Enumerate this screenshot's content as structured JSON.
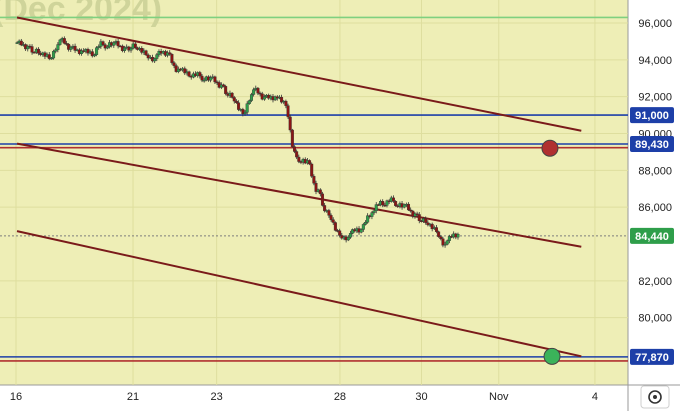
{
  "watermark": "(Dec 2024)",
  "colors": {
    "plot_bg": "#eeeeb6",
    "axis_bg": "#ffffff",
    "grid": "#dede9e",
    "trend": "#7a1a1a",
    "level_blue": "#1d3fa8",
    "level_red": "#b03030",
    "level_green": "#3bb35a",
    "candle_up": "#2e9e4a",
    "candle_down": "#8a1515",
    "last_price_badge": "#2e9e4a",
    "level_badge": "#1d3fa8"
  },
  "chart_data": {
    "type": "candlestick",
    "y_axis": {
      "ticks": [
        "96,000",
        "94,000",
        "92,000",
        "90,000",
        "88,000",
        "86,000",
        "82,000",
        "80,000"
      ],
      "range": [
        77000,
        97000
      ]
    },
    "x_axis": {
      "ticks": [
        "16",
        "21",
        "23",
        "28",
        "30",
        "Nov",
        "4"
      ]
    },
    "price_labels": [
      {
        "label": "91,000",
        "value": 91000,
        "kind": "level"
      },
      {
        "label": "89,430",
        "value": 89430,
        "kind": "level"
      },
      {
        "label": "84,440",
        "value": 84440,
        "kind": "last"
      },
      {
        "label": "77,870",
        "value": 77870,
        "kind": "level"
      }
    ],
    "horizontal_lines": [
      {
        "value": 96300,
        "color": "#7fd07f"
      },
      {
        "value": 91000,
        "color": "#1d3fa8"
      },
      {
        "value": 89430,
        "color": "#1d3fa8"
      },
      {
        "value": 89230,
        "color": "#b03030"
      },
      {
        "value": 84440,
        "color": "#7d7d7d",
        "dotted": true
      },
      {
        "value": 77870,
        "color": "#1d3fa8"
      },
      {
        "value": 77650,
        "color": "#b03030"
      }
    ],
    "trend_lines": [
      {
        "from": [
          0,
          96300
        ],
        "to": [
          27.0,
          90150
        ]
      },
      {
        "from": [
          0,
          89450
        ],
        "to": [
          27.0,
          83850
        ]
      },
      {
        "from": [
          0,
          84700
        ],
        "to": [
          27.0,
          77900
        ]
      }
    ],
    "markers": [
      {
        "x": 25.5,
        "value": 89200,
        "color": "#b03030",
        "label": "target"
      },
      {
        "x": 25.6,
        "value": 77900,
        "color": "#3bb35a",
        "label": "target"
      }
    ],
    "close_series": [
      94800,
      94700,
      94400,
      94200,
      94900,
      94600,
      94500,
      94300,
      95000,
      94800,
      94600,
      94700,
      94400,
      94100,
      94300,
      93500,
      93200,
      93300,
      92900,
      92600,
      92000,
      91200,
      92200,
      91900,
      92000,
      91600,
      88900,
      88400,
      86900,
      85600,
      84600,
      84400,
      84700,
      85700,
      86200,
      86500,
      86000,
      85600,
      85200,
      84800,
      84000,
      84440
    ],
    "series_x_range": [
      0,
      21.1
    ]
  },
  "bottom_icon": "settings-icon"
}
